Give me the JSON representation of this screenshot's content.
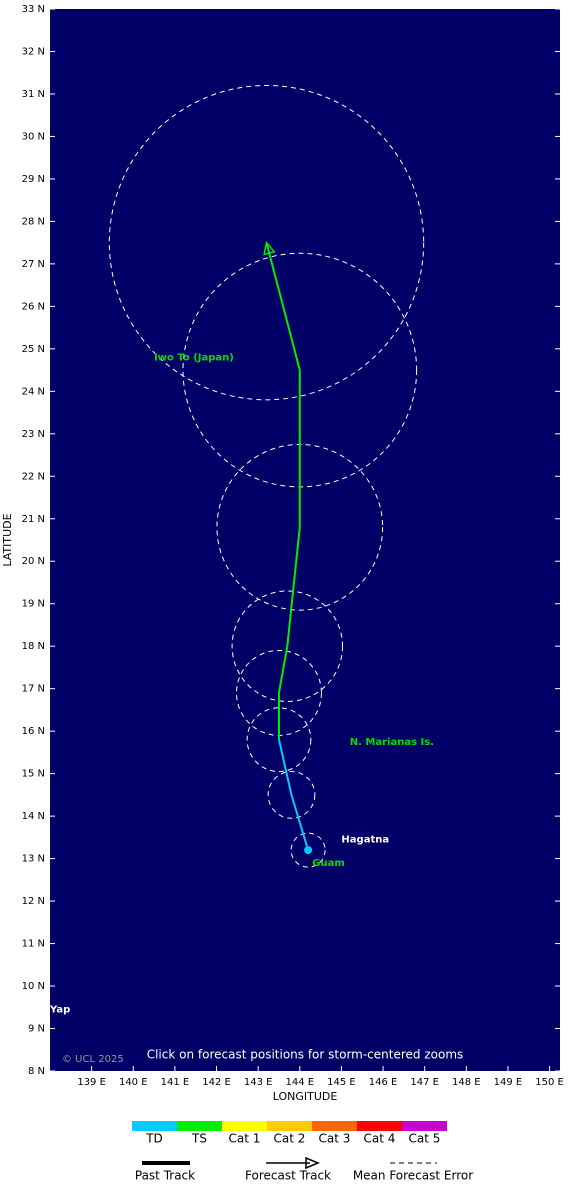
{
  "chart_data": {
    "type": "track-map",
    "xlabel": "LONGITUDE",
    "ylabel": "LATITUDE",
    "xlim": [
      138,
      150.25
    ],
    "ylim": [
      8,
      33
    ],
    "xticks": [
      {
        "value": 139,
        "label": "139 E"
      },
      {
        "value": 140,
        "label": "140 E"
      },
      {
        "value": 141,
        "label": "141 E"
      },
      {
        "value": 142,
        "label": "142 E"
      },
      {
        "value": 143,
        "label": "143 E"
      },
      {
        "value": 144,
        "label": "144 E"
      },
      {
        "value": 145,
        "label": "145 E"
      },
      {
        "value": 146,
        "label": "146 E"
      },
      {
        "value": 147,
        "label": "147 E"
      },
      {
        "value": 148,
        "label": "148 E"
      },
      {
        "value": 149,
        "label": "149 E"
      },
      {
        "value": 150,
        "label": "150 E"
      }
    ],
    "yticks": [
      {
        "value": 8,
        "label": "8 N"
      },
      {
        "value": 9,
        "label": "9 N"
      },
      {
        "value": 10,
        "label": "10 N"
      },
      {
        "value": 11,
        "label": "11 N"
      },
      {
        "value": 12,
        "label": "12 N"
      },
      {
        "value": 13,
        "label": "13 N"
      },
      {
        "value": 14,
        "label": "14 N"
      },
      {
        "value": 15,
        "label": "15 N"
      },
      {
        "value": 16,
        "label": "16 N"
      },
      {
        "value": 17,
        "label": "17 N"
      },
      {
        "value": 18,
        "label": "18 N"
      },
      {
        "value": 19,
        "label": "19 N"
      },
      {
        "value": 20,
        "label": "20 N"
      },
      {
        "value": 21,
        "label": "21 N"
      },
      {
        "value": 22,
        "label": "22 N"
      },
      {
        "value": 23,
        "label": "23 N"
      },
      {
        "value": 24,
        "label": "24 N"
      },
      {
        "value": 25,
        "label": "25 N"
      },
      {
        "value": 26,
        "label": "26 N"
      },
      {
        "value": 27,
        "label": "27 N"
      },
      {
        "value": 28,
        "label": "28 N"
      },
      {
        "value": 29,
        "label": "29 N"
      },
      {
        "value": 30,
        "label": "30 N"
      },
      {
        "value": 31,
        "label": "31 N"
      },
      {
        "value": 32,
        "label": "32 N"
      },
      {
        "value": 33,
        "label": "33 N"
      }
    ],
    "track": {
      "lon": [
        144.2,
        143.8,
        143.5,
        143.5,
        143.7,
        144.0,
        144.0,
        143.2
      ],
      "lat": [
        13.2,
        14.5,
        15.8,
        16.9,
        18.0,
        20.8,
        24.5,
        27.5
      ],
      "intensity": [
        "TD",
        "TD",
        "TD",
        "TS",
        "TS",
        "TS",
        "TS",
        "TS"
      ],
      "error_radius": [
        0.4,
        0.55,
        0.75,
        1.0,
        1.3,
        1.95,
        2.75,
        3.7
      ]
    },
    "places": [
      {
        "name": "Iwo To (Japan)",
        "lon": 140.5,
        "lat": 24.8,
        "color": "#00dd00"
      },
      {
        "name": "N. Marianas Is.",
        "lon": 145.2,
        "lat": 15.75,
        "color": "#00dd00"
      },
      {
        "name": "Hagatna",
        "lon": 145.0,
        "lat": 13.45,
        "color": "#ffffff"
      },
      {
        "name": "Guam",
        "lon": 144.3,
        "lat": 12.9,
        "color": "#00dd00"
      },
      {
        "name": "Yap",
        "lon": 138.0,
        "lat": 9.45,
        "color": "#ffffff"
      }
    ],
    "credit": "© UCL 2025",
    "note": "Click on forecast positions for storm-centered zooms",
    "scale": [
      {
        "name": "TD",
        "color": "#00ccff"
      },
      {
        "name": "TS",
        "color": "#00ee00"
      },
      {
        "name": "Cat 1",
        "color": "#ffff00"
      },
      {
        "name": "Cat 2",
        "color": "#ffcc00"
      },
      {
        "name": "Cat 3",
        "color": "#ff6600"
      },
      {
        "name": "Cat 4",
        "color": "#ff0000"
      },
      {
        "name": "Cat 5",
        "color": "#cc00cc"
      }
    ],
    "legend": [
      "Past Track",
      "Forecast Track",
      "Mean Forecast Error"
    ]
  }
}
